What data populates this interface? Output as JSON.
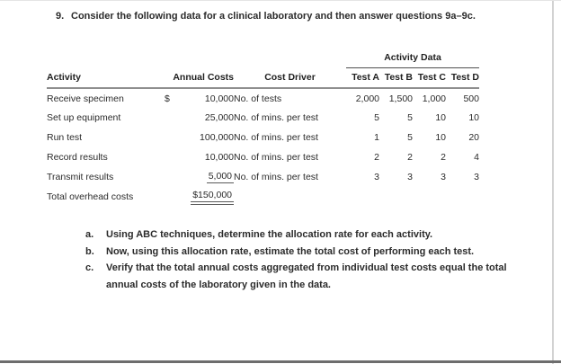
{
  "question": {
    "number": "9.",
    "text": "Consider the following data for a clinical laboratory and then answer questions 9a–9c."
  },
  "table": {
    "spanner_label": "Activity Data",
    "headers": {
      "activity": "Activity",
      "annual_costs": "Annual Costs",
      "cost_driver": "Cost Driver",
      "test_a": "Test A",
      "test_b": "Test B",
      "test_c": "Test C",
      "test_d": "Test D"
    },
    "rows": [
      {
        "activity": "Receive specimen",
        "currency": "$",
        "annual_cost": "10,000",
        "cost_driver": "No. of tests",
        "test_a": "2,000",
        "test_b": "1,500",
        "test_c": "1,000",
        "test_d": "500"
      },
      {
        "activity": "Set up equipment",
        "annual_cost": "25,000",
        "cost_driver": "No. of mins. per test",
        "test_a": "5",
        "test_b": "5",
        "test_c": "10",
        "test_d": "10"
      },
      {
        "activity": "Run test",
        "annual_cost": "100,000",
        "cost_driver": "No. of mins. per test",
        "test_a": "1",
        "test_b": "5",
        "test_c": "10",
        "test_d": "20"
      },
      {
        "activity": "Record results",
        "annual_cost": "10,000",
        "cost_driver": "No. of mins. per test",
        "test_a": "2",
        "test_b": "2",
        "test_c": "2",
        "test_d": "4"
      },
      {
        "activity": "Transmit results",
        "annual_cost": "5,000",
        "cost_driver": "No. of mins. per test",
        "test_a": "3",
        "test_b": "3",
        "test_c": "3",
        "test_d": "3"
      }
    ],
    "total": {
      "label": "Total overhead costs",
      "value": "$150,000"
    }
  },
  "subquestions": [
    {
      "label": "a.",
      "text": "Using ABC techniques, determine the allocation rate for each activity."
    },
    {
      "label": "b.",
      "text": "Now, using this allocation rate, estimate the total cost of performing each test."
    },
    {
      "label": "c.",
      "text": "Verify that the total annual costs aggregated from individual test costs equal the total annual costs of the laboratory given in the data."
    }
  ]
}
